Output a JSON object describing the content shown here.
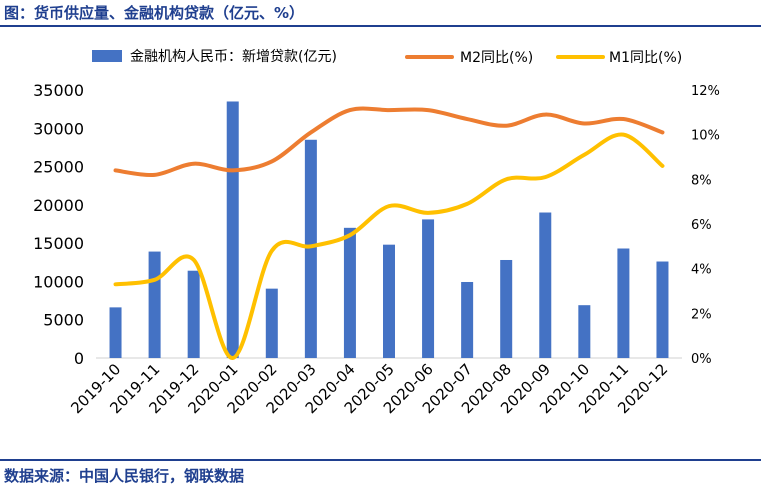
{
  "header": {
    "title": "图：货币供应量、金融机构贷款（亿元、%）"
  },
  "footer": {
    "source": "数据来源：中国人民银行，钢联数据"
  },
  "colors": {
    "bar": "#4472c4",
    "m2": "#ed7d31",
    "m1": "#ffc000",
    "text": "#000000",
    "brand": "#1f3f8f"
  },
  "chart_data": {
    "type": "bar",
    "title": "",
    "categories": [
      "2019-10",
      "2019-11",
      "2019-12",
      "2020-01",
      "2020-02",
      "2020-03",
      "2020-04",
      "2020-05",
      "2020-06",
      "2020-07",
      "2020-08",
      "2020-09",
      "2020-10",
      "2020-11",
      "2020-12"
    ],
    "series": [
      {
        "name": "金融机构人民币：新增贷款(亿元)",
        "type": "bar",
        "axis": "left",
        "values": [
          6613,
          13900,
          11400,
          33500,
          9057,
          28500,
          17000,
          14800,
          18100,
          9927,
          12800,
          19000,
          6898,
          14300,
          12600
        ]
      },
      {
        "name": "M2同比(%)",
        "type": "line",
        "axis": "right",
        "values": [
          8.4,
          8.2,
          8.7,
          8.4,
          8.8,
          10.1,
          11.1,
          11.1,
          11.1,
          10.7,
          10.4,
          10.9,
          10.5,
          10.7,
          10.1
        ]
      },
      {
        "name": "M1同比(%)",
        "type": "line",
        "axis": "right",
        "values": [
          3.3,
          3.5,
          4.4,
          0.0,
          4.8,
          5.0,
          5.5,
          6.8,
          6.5,
          6.9,
          8.0,
          8.1,
          9.1,
          10.0,
          8.6
        ]
      }
    ],
    "y_left": {
      "min": 0,
      "max": 35000,
      "ticks": [
        0,
        5000,
        10000,
        15000,
        20000,
        25000,
        30000,
        35000
      ]
    },
    "y_right": {
      "min": 0,
      "max": 12,
      "ticks": [
        "0%",
        "2%",
        "4%",
        "6%",
        "8%",
        "10%",
        "12%"
      ]
    },
    "legend": "top",
    "grid": false
  }
}
